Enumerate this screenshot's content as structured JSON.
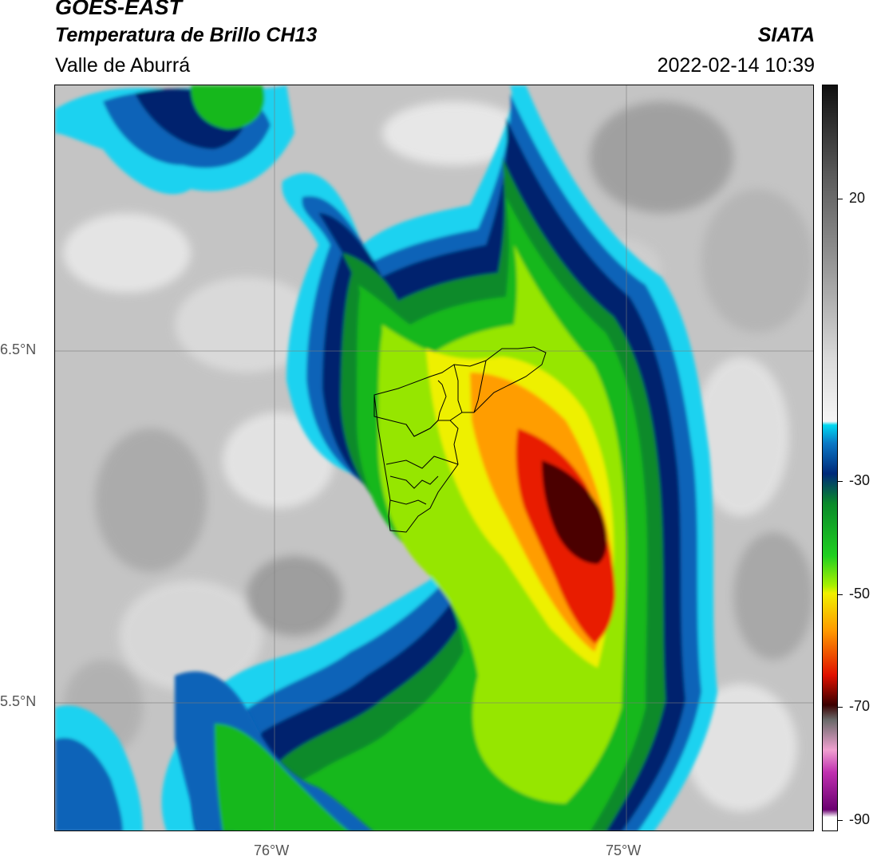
{
  "header": {
    "satellite": "GOES-EAST",
    "product": "Temperatura de Brillo CH13",
    "region": "Valle de Aburrá",
    "organization": "SIATA",
    "timestamp": "2022-02-14 10:39"
  },
  "axes": {
    "lat_labels": [
      "6.5°N",
      "5.5°N"
    ],
    "lon_labels": [
      "76°W",
      "75°W"
    ]
  },
  "colorbar": {
    "labels": [
      "20",
      "-30",
      "-50",
      "-70",
      "-90"
    ],
    "stops": [
      "#101010",
      "#5a5a5a",
      "#9c9c9c",
      "#dcdcdc",
      "#f5f5f5",
      "#00d8f0",
      "#0a76c4",
      "#002a7a",
      "#0a8a2a",
      "#20d020",
      "#a8f000",
      "#f0f000",
      "#ff9a00",
      "#e01000",
      "#3a0000",
      "#6a6a6a",
      "#f0a0d0",
      "#c030b0",
      "#6a0070",
      "#ffffff"
    ]
  },
  "colors": {
    "clear_sky_gray": "#c8c8c8",
    "cyan": "#1fd2f0",
    "blue": "#0a63b8",
    "navy": "#00236e",
    "green": "#16b81c",
    "lime": "#96e600",
    "yellow": "#eef000",
    "orange": "#ff9d00",
    "red": "#e81a00",
    "darkred": "#4c0000",
    "boundary": "#000000"
  }
}
